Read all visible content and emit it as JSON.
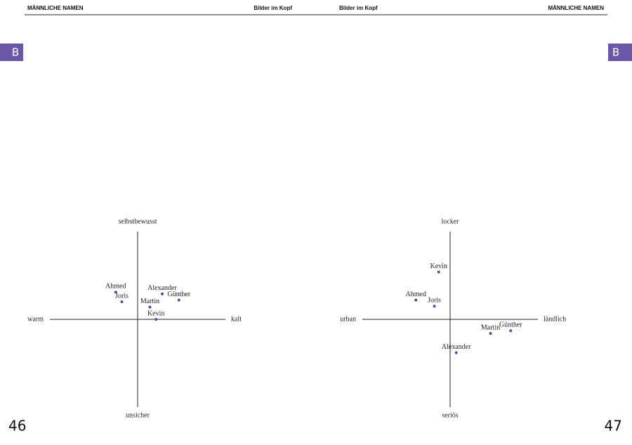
{
  "header": {
    "left": {
      "section": "MÄNNLICHE NAMEN",
      "title": "Bilder im Kopf"
    },
    "right": {
      "title": "Bilder im Kopf",
      "section": "MÄNNLICHE NAMEN"
    }
  },
  "tabs": [
    "B",
    "B"
  ],
  "page_numbers": [
    "46",
    "47"
  ],
  "chart_data": [
    {
      "type": "scatter",
      "color": "#5b4a9b",
      "axis_labels": {
        "top": "selbstbewusst",
        "bottom": "unsicher",
        "left": "warm",
        "right": "kalt"
      },
      "labels": [
        "Ahmed",
        "Joris",
        "Alexander",
        "Günther",
        "Martin",
        "Kevin"
      ],
      "x": [
        -0.25,
        -0.18,
        0.28,
        0.47,
        0.14,
        0.21
      ],
      "values": [
        0.31,
        0.2,
        0.29,
        0.22,
        0.14,
        0.0
      ],
      "xlim": [
        -1,
        1
      ],
      "ylim": [
        -1,
        1
      ]
    },
    {
      "type": "scatter",
      "color": "#5b4a9b",
      "axis_labels": {
        "top": "locker",
        "bottom": "seriös",
        "left": "urban",
        "right": "ländlich"
      },
      "labels": [
        "Kevin",
        "Ahmed",
        "Joris",
        "Martin",
        "Günther",
        "Alexander"
      ],
      "x": [
        -0.13,
        -0.39,
        -0.18,
        0.46,
        0.69,
        0.07
      ],
      "values": [
        0.54,
        0.22,
        0.15,
        -0.16,
        -0.13,
        -0.38
      ],
      "xlim": [
        -1,
        1
      ],
      "ylim": [
        -1,
        1
      ]
    }
  ]
}
